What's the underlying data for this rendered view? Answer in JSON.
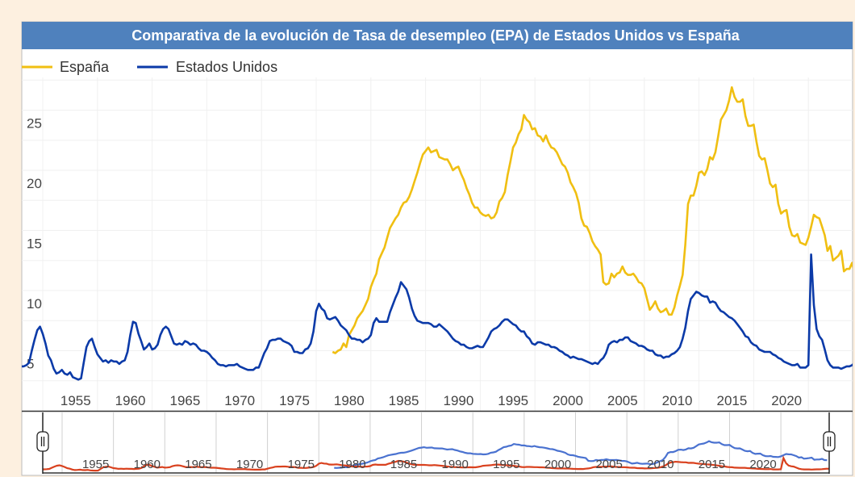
{
  "chart_data": {
    "type": "line",
    "title": "Comparativa de la evolución de Tasa de desempleo (EPA) de Estados Unidos vs España",
    "xlabel": "",
    "ylabel": "",
    "frequency": "quarterly",
    "xlim": [
      1948,
      2024.5
    ],
    "ylim": [
      0,
      27.5
    ],
    "grid": true,
    "legend_position": "top-left",
    "x_ticks": [
      "1955",
      "1960",
      "1965",
      "1970",
      "1975",
      "1980",
      "1985",
      "1990",
      "1995",
      "2000",
      "2005",
      "2010",
      "2015",
      "2020"
    ],
    "y_ticks": [
      "5",
      "10",
      "15",
      "20",
      "25"
    ],
    "navigator_ticks": [
      "1955",
      "1960",
      "1965",
      "1970",
      "1975",
      "1980",
      "1985",
      "1990",
      "1995",
      "2000",
      "2005",
      "2010",
      "2015",
      "2020"
    ],
    "series": [
      {
        "name": "España",
        "color": "#f0bf12",
        "navigator_color": "#4a72d0",
        "start": "1976-Q3",
        "values": [
          4.9,
          4.8,
          5.0,
          5.1,
          5.6,
          5.3,
          6.3,
          6.7,
          7.1,
          7.7,
          8.0,
          8.3,
          8.8,
          9.3,
          10.3,
          10.9,
          11.4,
          12.6,
          13.1,
          13.6,
          14.4,
          15.2,
          15.6,
          16.0,
          16.3,
          16.9,
          17.3,
          17.4,
          17.8,
          18.4,
          19.1,
          19.8,
          20.6,
          21.3,
          21.6,
          21.9,
          21.5,
          21.6,
          21.7,
          21.1,
          21.0,
          20.9,
          20.9,
          20.5,
          20.0,
          20.2,
          20.3,
          19.7,
          19.2,
          18.5,
          18.0,
          17.3,
          16.9,
          16.9,
          16.5,
          16.3,
          16.2,
          16.3,
          16.0,
          16.1,
          16.5,
          17.4,
          17.7,
          18.2,
          19.6,
          20.7,
          21.9,
          22.3,
          23.0,
          23.4,
          24.6,
          24.2,
          24.0,
          23.4,
          23.5,
          22.9,
          22.8,
          22.4,
          22.9,
          22.3,
          21.9,
          21.8,
          21.5,
          21.0,
          20.5,
          20.3,
          19.8,
          19.0,
          18.6,
          18.1,
          17.3,
          16.0,
          15.4,
          15.3,
          14.8,
          14.1,
          13.7,
          13.4,
          13.0,
          10.7,
          10.5,
          10.6,
          11.4,
          11.1,
          11.4,
          11.5,
          12.0,
          11.5,
          11.3,
          11.3,
          11.4,
          11.1,
          10.7,
          10.6,
          10.2,
          9.3,
          8.4,
          8.7,
          9.1,
          8.5,
          8.2,
          8.3,
          8.5,
          8.0,
          8.0,
          8.6,
          9.6,
          10.4,
          11.3,
          13.8,
          17.2,
          17.9,
          17.9,
          18.7,
          19.8,
          19.9,
          19.6,
          20.1,
          21.1,
          20.9,
          21.5,
          22.8,
          24.2,
          24.6,
          25.0,
          25.8,
          26.9,
          26.1,
          25.7,
          25.7,
          25.9,
          24.5,
          23.7,
          23.7,
          23.8,
          22.4,
          21.2,
          20.9,
          21.0,
          20.0,
          18.9,
          18.6,
          18.8,
          17.2,
          16.4,
          16.6,
          16.7,
          15.3,
          14.6,
          14.5,
          14.7,
          14.0,
          13.9,
          13.8,
          14.4,
          15.3,
          16.3,
          16.1,
          16.0,
          15.3,
          14.6,
          13.3,
          13.7,
          12.5,
          12.7,
          12.9,
          13.3,
          11.6,
          11.8,
          11.8,
          12.3,
          11.3,
          11.2
        ]
      },
      {
        "name": "Estados Unidos",
        "color": "#0b3aa8",
        "navigator_color": "#d9411e",
        "start": "1948-Q1",
        "values": [
          3.7,
          3.7,
          3.8,
          4.0,
          5.0,
          5.9,
          6.7,
          7.0,
          6.4,
          5.6,
          4.6,
          4.2,
          3.5,
          3.1,
          3.2,
          3.4,
          3.1,
          3.0,
          3.2,
          2.8,
          2.7,
          2.6,
          2.7,
          4.0,
          5.3,
          5.8,
          6.0,
          5.3,
          4.7,
          4.4,
          4.1,
          4.2,
          4.0,
          4.2,
          4.1,
          4.1,
          3.9,
          4.1,
          4.2,
          4.9,
          6.3,
          7.4,
          7.3,
          6.4,
          5.8,
          5.1,
          5.3,
          5.6,
          5.1,
          5.2,
          5.5,
          6.3,
          6.8,
          7.0,
          6.8,
          6.2,
          5.6,
          5.5,
          5.6,
          5.5,
          5.8,
          5.7,
          5.5,
          5.6,
          5.5,
          5.2,
          5.0,
          5.0,
          4.9,
          4.7,
          4.4,
          4.2,
          3.9,
          3.8,
          3.8,
          3.7,
          3.8,
          3.8,
          3.8,
          3.9,
          3.7,
          3.6,
          3.5,
          3.4,
          3.4,
          3.4,
          3.6,
          3.6,
          4.2,
          4.8,
          5.2,
          5.8,
          5.9,
          5.9,
          6.0,
          6.0,
          5.8,
          5.7,
          5.6,
          5.4,
          4.9,
          4.9,
          4.8,
          4.8,
          5.1,
          5.2,
          5.6,
          6.6,
          8.3,
          8.9,
          8.5,
          8.3,
          7.7,
          7.6,
          7.7,
          7.8,
          7.5,
          7.1,
          6.9,
          6.7,
          6.3,
          6.0,
          6.0,
          5.9,
          5.9,
          5.7,
          5.9,
          6.0,
          6.3,
          7.3,
          7.7,
          7.4,
          7.4,
          7.4,
          7.4,
          8.2,
          8.8,
          9.4,
          9.9,
          10.7,
          10.4,
          10.1,
          9.4,
          8.5,
          7.9,
          7.5,
          7.4,
          7.3,
          7.3,
          7.3,
          7.2,
          7.0,
          7.0,
          7.2,
          7.0,
          6.8,
          6.6,
          6.3,
          6.0,
          5.8,
          5.7,
          5.5,
          5.5,
          5.3,
          5.2,
          5.2,
          5.3,
          5.4,
          5.3,
          5.3,
          5.7,
          6.1,
          6.6,
          6.8,
          6.9,
          7.1,
          7.4,
          7.6,
          7.6,
          7.4,
          7.2,
          7.1,
          6.8,
          6.6,
          6.6,
          6.2,
          6.0,
          5.6,
          5.5,
          5.7,
          5.7,
          5.6,
          5.5,
          5.5,
          5.3,
          5.3,
          5.2,
          5.0,
          4.9,
          4.7,
          4.6,
          4.4,
          4.5,
          4.4,
          4.3,
          4.3,
          4.2,
          4.1,
          4.0,
          3.9,
          4.0,
          3.9,
          4.2,
          4.4,
          4.8,
          5.5,
          5.7,
          5.8,
          5.7,
          5.9,
          5.9,
          6.1,
          6.1,
          5.8,
          5.7,
          5.6,
          5.4,
          5.4,
          5.3,
          5.1,
          5.0,
          5.0,
          4.7,
          4.6,
          4.6,
          4.4,
          4.5,
          4.5,
          4.7,
          4.8,
          5.0,
          5.3,
          6.0,
          6.9,
          8.3,
          9.3,
          9.6,
          9.9,
          9.8,
          9.6,
          9.5,
          9.5,
          9.0,
          9.1,
          9.0,
          8.6,
          8.3,
          8.2,
          8.0,
          7.8,
          7.7,
          7.5,
          7.2,
          6.9,
          6.6,
          6.2,
          6.1,
          5.7,
          5.5,
          5.4,
          5.1,
          5.0,
          4.9,
          4.9,
          4.9,
          4.7,
          4.6,
          4.4,
          4.3,
          4.1,
          4.0,
          3.9,
          3.8,
          3.8,
          3.9,
          3.6,
          3.6,
          3.6,
          3.8,
          13.0,
          8.8,
          6.8,
          6.2,
          5.9,
          5.1,
          4.2,
          3.8,
          3.6,
          3.6,
          3.6,
          3.5,
          3.6,
          3.7,
          3.7,
          3.8,
          4.0,
          4.2,
          4.1
        ]
      }
    ]
  },
  "colors": {
    "page_background": "#fdf0e0",
    "title_bar": "#4f81bd"
  }
}
